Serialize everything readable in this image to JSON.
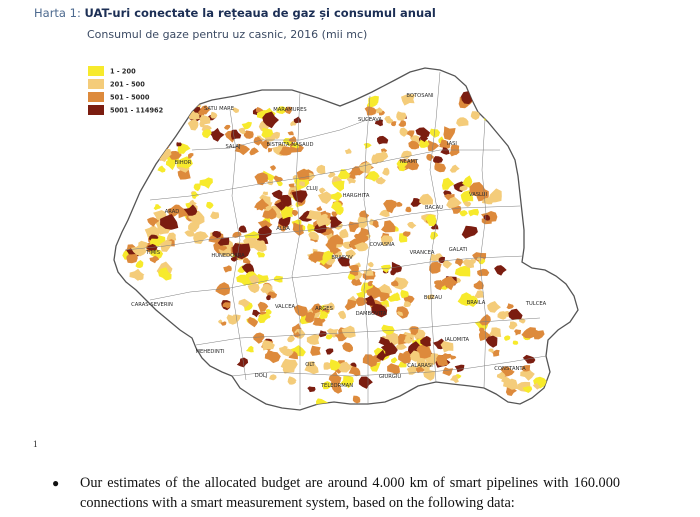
{
  "header": {
    "title_prefix": "Harta 1: ",
    "title_main": "UAT-uri conectate la rețeaua de gaz și consumul anual",
    "subtitle": "Consumul de gaze pentru uz casnic, 2016 (mii mc)"
  },
  "legend": {
    "items": [
      {
        "label": "1 - 200",
        "color": "#f7ea2c"
      },
      {
        "label": "201 - 500",
        "color": "#f4cc7a"
      },
      {
        "label": "501 - 5000",
        "color": "#dd8a3c"
      },
      {
        "label": "5001 - 114962",
        "color": "#7b1d10"
      }
    ]
  },
  "map": {
    "background_color": "#ffffff",
    "border_color": "#555555",
    "county_labels": [
      "SATU MARE",
      "MARAMURES",
      "BOTOSANI",
      "SUCEAVA",
      "SALAJ",
      "BISTRITA-NASAUD",
      "IASI",
      "BIHOR",
      "NEAMT",
      "CLUJ",
      "VASLUI",
      "HARGHITA",
      "BACAU",
      "ARAD",
      "ALBA",
      "COVASNA",
      "GALATI",
      "VRANCEA",
      "TIMIS",
      "HUNEDOARA",
      "BRASOV",
      "BUZAU",
      "CARAS-SEVERIN",
      "BRAILA",
      "VALCEA",
      "ARGES",
      "DAMBOVITA",
      "TULCEA",
      "MEHEDINTI",
      "IALOMITA",
      "CALARASI",
      "DOLJ",
      "OLT",
      "CONSTANTA",
      "TELEORMAN",
      "GIURGIU"
    ]
  },
  "footer": {
    "footnote_number": "1",
    "bullet_text": "Our estimates of the allocated budget are around 4.000 km of smart pipelines with 160.000 connections with a smart measurement system, based on the following data:"
  }
}
